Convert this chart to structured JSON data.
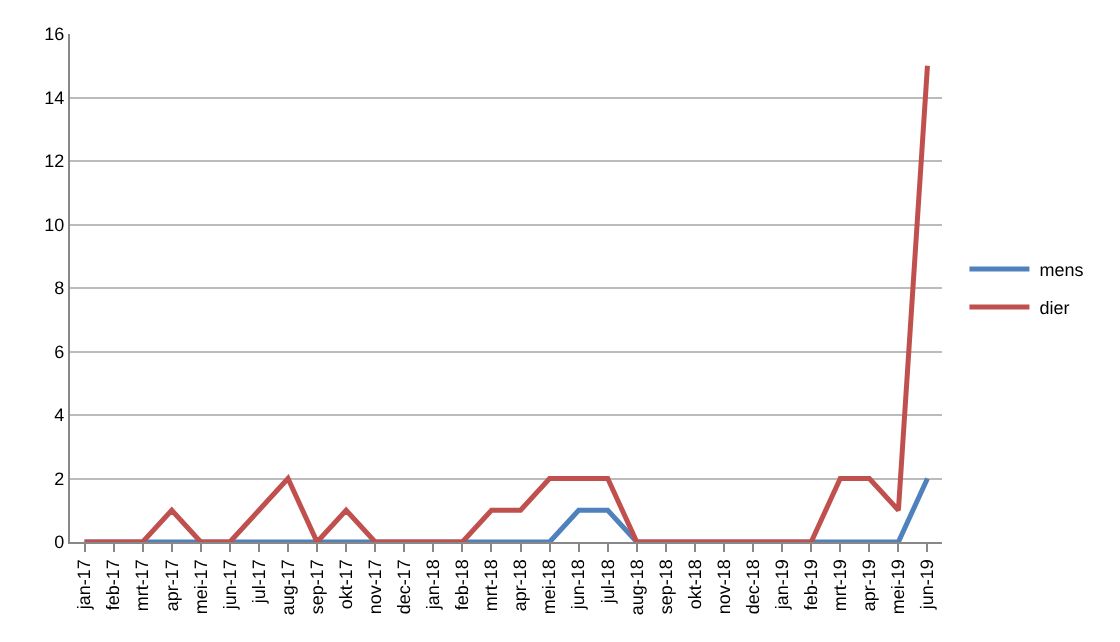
{
  "chart_data": {
    "type": "line",
    "categories": [
      "jan-17",
      "feb-17",
      "mrt-17",
      "apr-17",
      "mei-17",
      "jun-17",
      "jul-17",
      "aug-17",
      "sep-17",
      "okt-17",
      "nov-17",
      "dec-17",
      "jan-18",
      "feb-18",
      "mrt-18",
      "apr-18",
      "mei-18",
      "jun-18",
      "jul-18",
      "aug-18",
      "sep-18",
      "okt-18",
      "nov-18",
      "dec-18",
      "jan-19",
      "feb-19",
      "mrt-19",
      "apr-19",
      "mei-19",
      "jun-19"
    ],
    "series": [
      {
        "name": "mens",
        "color": "#4f81bd",
        "values": [
          0,
          0,
          0,
          0,
          0,
          0,
          0,
          0,
          0,
          0,
          0,
          0,
          0,
          0,
          0,
          0,
          0,
          1,
          1,
          0,
          0,
          0,
          0,
          0,
          0,
          0,
          0,
          0,
          0,
          2
        ]
      },
      {
        "name": "dier",
        "color": "#c0504d",
        "values": [
          0,
          0,
          0,
          1,
          0,
          0,
          1,
          2,
          0,
          1,
          0,
          0,
          0,
          0,
          1,
          1,
          2,
          2,
          2,
          0,
          0,
          0,
          0,
          0,
          0,
          0,
          2,
          2,
          1,
          15
        ]
      }
    ],
    "ylim": [
      0,
      16
    ],
    "yticks": [
      0,
      2,
      4,
      6,
      8,
      10,
      12,
      14,
      16
    ],
    "grid": "y",
    "legend": "right",
    "marker": "none",
    "line_style": "solid"
  }
}
